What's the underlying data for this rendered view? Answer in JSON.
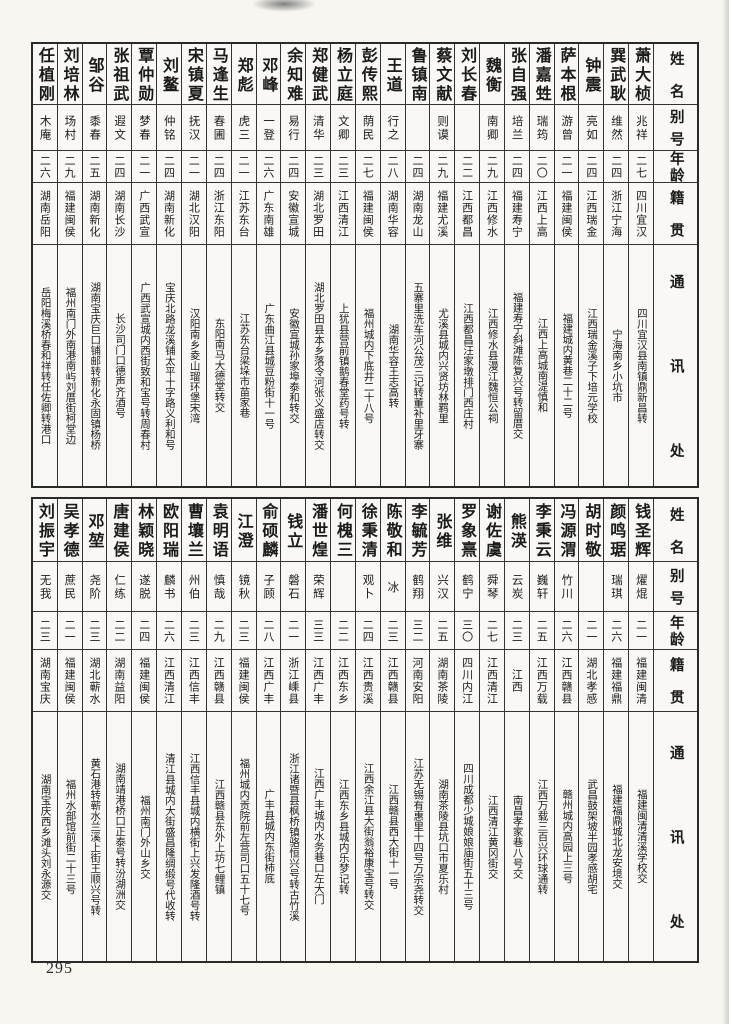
{
  "page": {
    "number": "295"
  },
  "row_headers": [
    "姓名",
    "别号",
    "年龄",
    "籍贯",
    "通讯处"
  ],
  "tables": [
    {
      "entries": [
        {
          "name": "萧大桢",
          "alias": "兆祥",
          "age": "二七",
          "origin": "四川宜汉",
          "address": "四川宜汉县南镇鼎新昌转"
        },
        {
          "name": "巽武耿",
          "alias": "维然",
          "age": "二四",
          "origin": "浙江宁海",
          "address": "宁海南乡小坑市"
        },
        {
          "name": "钟震",
          "alias": "亮如",
          "age": "二四",
          "origin": "江西瑞金",
          "address": "江西瑞金溪子下培元学校"
        },
        {
          "name": "萨本根",
          "alias": "游曾",
          "age": "二一",
          "origin": "福建闽侯",
          "address": "福建城内黄巷二十二号"
        },
        {
          "name": "潘嘉甡",
          "alias": "瑞筠",
          "age": "二〇",
          "origin": "江西上高",
          "address": "江西上高城南湜慎和"
        },
        {
          "name": "张自强",
          "alias": "培兰",
          "age": "二四",
          "origin": "福建寿宁",
          "address": "福建寿宁斜滩陈复兴号转留厝交"
        },
        {
          "name": "魏衡",
          "alias": "南卿",
          "age": "二九",
          "origin": "江西修水",
          "address": "江西修水县漫江魏恒公祠"
        },
        {
          "name": "刘长春",
          "alias": "",
          "age": "二二",
          "origin": "江西都昌",
          "address": "江西都昌汪家墩排门西庄村"
        },
        {
          "name": "蔡文献",
          "alias": "则谟",
          "age": "二九",
          "origin": "福建尤溪",
          "address": "尤溪县城内兴贤坊林羁里"
        },
        {
          "name": "鲁镇南",
          "alias": "",
          "age": "二四",
          "origin": "湖南龙山",
          "address": "五寨里洗车河公茂三记转董补里牙寨"
        },
        {
          "name": "王道",
          "alias": "行之",
          "age": "二八",
          "origin": "湖南华容",
          "address": "湖南华容王志高转"
        },
        {
          "name": "彭传熙",
          "alias": "荫民",
          "age": "二七",
          "origin": "福建闽侯",
          "address": "福州城内下底井二十八号"
        },
        {
          "name": "杨立庭",
          "alias": "文卿",
          "age": "二三",
          "origin": "江西清江",
          "address": "上犹县营前镇鹅春堂药号转"
        },
        {
          "name": "郑健武",
          "alias": "清华",
          "age": "二三",
          "origin": "湖北罗田",
          "address": "湖北罗田县本乡落令河张义盛店转交"
        },
        {
          "name": "余知难",
          "alias": "易行",
          "age": "二四",
          "origin": "安徽宣城",
          "address": "安徽宣城孙家埠泰和转交"
        },
        {
          "name": "邓峰",
          "alias": "一登",
          "age": "二六",
          "origin": "广东南雄",
          "address": "广东曲江县城豆粉街十一号"
        },
        {
          "name": "郑彪",
          "alias": "虎三",
          "age": "二一",
          "origin": "江苏东台",
          "address": "江苏东台梁垛市苗家巷"
        },
        {
          "name": "马逢生",
          "alias": "春圃",
          "age": "二四",
          "origin": "浙江东阳",
          "address": "东阳南马大德堂转交"
        },
        {
          "name": "宋镇夏",
          "alias": "抚汉",
          "age": "二一",
          "origin": "湖北汉阳",
          "address": "汉阳南乡夌山瑠环堡宋湾"
        },
        {
          "name": "刘鳌",
          "alias": "仲铭",
          "age": "二四",
          "origin": "湖南新化",
          "address": "宝庆北路龙溪铺太平十字路义利和号"
        },
        {
          "name": "覃仲勋",
          "alias": "梦春",
          "age": "二一",
          "origin": "广西武宣",
          "address": "广西武宣城内西街致和宝号转周春村"
        },
        {
          "name": "张祖武",
          "alias": "遐文",
          "age": "二四",
          "origin": "湖南长沙",
          "address": "长沙司门口德声齐酒号"
        },
        {
          "name": "邹谷",
          "alias": "黍春",
          "age": "二五",
          "origin": "湖南新化",
          "address": "湖南宝庆巨口铺邮转新化永固镇杨桥"
        },
        {
          "name": "刘培林",
          "alias": "场村",
          "age": "二九",
          "origin": "福建闽侯",
          "address": "福州南门外南港南屿刘厝街柯堂边"
        },
        {
          "name": "任植刚",
          "alias": "木庵",
          "age": "二六",
          "origin": "湖南岳阳",
          "address": "岳阳梅溪桥春和祥转任佐卿转港口"
        }
      ]
    },
    {
      "entries": [
        {
          "name": "钱圣辉",
          "alias": "燿焜",
          "age": "二一",
          "origin": "福建闽清",
          "address": "福建闽清清溪学校交"
        },
        {
          "name": "颜鸣琚",
          "alias": "瑞琪",
          "age": "二六",
          "origin": "福建福鼎",
          "address": "福建福鼎城北龙安境交"
        },
        {
          "name": "胡时敬",
          "alias": "",
          "age": "二一",
          "origin": "湖北孝感",
          "address": "武昌鼓架坡半园孝感胡宅"
        },
        {
          "name": "冯源渭",
          "alias": "竹川",
          "age": "二六",
          "origin": "江西赣县",
          "address": "赣州城内高园上三号"
        },
        {
          "name": "李秉云",
          "alias": "巍轩",
          "age": "二五",
          "origin": "江西万载",
          "address": "江西万载三百兴环球通转"
        },
        {
          "name": "熊渶",
          "alias": "云炭",
          "age": "二三",
          "origin": "江西",
          "address": "南昌孝家巷八号交"
        },
        {
          "name": "谢佐虞",
          "alias": "舜琴",
          "age": "二七",
          "origin": "江西清江",
          "address": "江西清江黄冈街交"
        },
        {
          "name": "罗象熹",
          "alias": "鹤宁",
          "age": "三〇",
          "origin": "四川内江",
          "address": "四川成都少城娘娘庙街五十三号"
        },
        {
          "name": "张维",
          "alias": "兴汉",
          "age": "二五",
          "origin": "湖南茶陵",
          "address": "湖南茶陵县坑口市夏乐村"
        },
        {
          "name": "李毓芳",
          "alias": "鹤翔",
          "age": "三二",
          "origin": "河南安阳",
          "address": "江苏无锡有惠里十四号万宗尧转交"
        },
        {
          "name": "陈敬和",
          "alias": "冰",
          "age": "二三",
          "origin": "江西赣县",
          "address": "江西赣县西大街十一号"
        },
        {
          "name": "徐秉清",
          "alias": "观卜",
          "age": "二四",
          "origin": "江西贵溪",
          "address": "江西余江县大街翁裕康宝号转交"
        },
        {
          "name": "何槐三",
          "alias": "",
          "age": "二二",
          "origin": "江西东乡",
          "address": "江西东乡县城内乐梦记转"
        },
        {
          "name": "潘世煌",
          "alias": "荣辉",
          "age": "三三",
          "origin": "江西广丰",
          "address": "江西广丰城内水务巷口左大门"
        },
        {
          "name": "钱立",
          "alias": "磐石",
          "age": "二一",
          "origin": "浙江嵊县",
          "address": "浙江诸暨县枫桥镇骆恒兴号转古竹溪"
        },
        {
          "name": "俞硕麟",
          "alias": "子顾",
          "age": "二八",
          "origin": "江西广丰",
          "address": "广丰县城内东街柿底"
        },
        {
          "name": "江澄",
          "alias": "镜秋",
          "age": "二三",
          "origin": "福建闽侯",
          "address": "福州城内贡院前左营司口五十七号"
        },
        {
          "name": "袁明语",
          "alias": "慎哉",
          "age": "二九",
          "origin": "江西赣县",
          "address": "江西赣县东外上坊七鲤镇"
        },
        {
          "name": "曹壤兰",
          "alias": "州伯",
          "age": "二三",
          "origin": "江西信丰",
          "address": "江西信丰县城内横街上兴发隆酒号转"
        },
        {
          "name": "欧阳瑞",
          "alias": "麟书",
          "age": "二六",
          "origin": "江西清江",
          "address": "清江县城内大街盛昌隆绸缎号代收转"
        },
        {
          "name": "林颖晓",
          "alias": "遂脱",
          "age": "二四",
          "origin": "福建闽侯",
          "address": "福州南门外山乡交"
        },
        {
          "name": "唐建侯",
          "alias": "仁练",
          "age": "二二",
          "origin": "湖南益阳",
          "address": "湖南靖港桥口正泰号转汾湖洲交"
        },
        {
          "name": "邓堃",
          "alias": "尧阶",
          "age": "二三",
          "origin": "湖北蕲水",
          "address": "黄石港转蕲水兰溪上街王顺兴号转"
        },
        {
          "name": "吴孝德",
          "alias": "蔗民",
          "age": "二一",
          "origin": "福建闽侯",
          "address": "福州水部馆前街二十三号"
        },
        {
          "name": "刘振宇",
          "alias": "无我",
          "age": "二三",
          "origin": "湖南宝庆",
          "address": "湖南宝庆西乡滩头刘永源交"
        }
      ]
    }
  ]
}
